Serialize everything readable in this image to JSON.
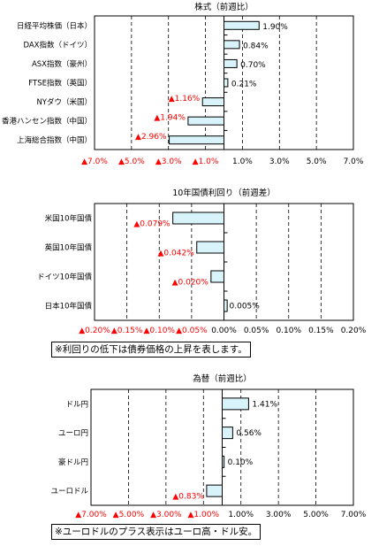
{
  "colors": {
    "bar_fill": "#d9f3fa",
    "bar_stroke": "#000000",
    "negative_label": "#ff0000",
    "positive_label": "#000000",
    "grid": "#000000"
  },
  "chart_data": [
    {
      "type": "bar",
      "orientation": "horizontal",
      "title": "株式（前週比）",
      "categories": [
        "日経平均株価（日本）",
        "DAX指数（ドイツ）",
        "ASX指数（豪州）",
        "FTSE指数（英国）",
        "NYダウ（米国）",
        "香港ハンセン指数（中国）",
        "上海総合指数（中国）"
      ],
      "values": [
        1.9,
        0.84,
        0.7,
        0.21,
        -1.16,
        -1.94,
        -2.96
      ],
      "value_labels": [
        "1.90%",
        "0.84%",
        "0.70%",
        "0.21%",
        "▲1.16%",
        "▲1.94%",
        "▲2.96%"
      ],
      "xlim": [
        -7,
        7
      ],
      "xticks": [
        -7,
        -5,
        -3,
        -1,
        1,
        3,
        5,
        7
      ],
      "xtick_labels": [
        "▲7.0%",
        "▲5.0%",
        "▲3.0%",
        "▲1.0%",
        "1.0%",
        "3.0%",
        "5.0%",
        "7.0%"
      ],
      "grid": true
    },
    {
      "type": "bar",
      "orientation": "horizontal",
      "title": "10年国債利回り（前週差）",
      "categories": [
        "米国10年国債",
        "英国10年国債",
        "ドイツ10年国債",
        "日本10年国債"
      ],
      "values": [
        -0.079,
        -0.042,
        -0.02,
        0.005
      ],
      "value_labels": [
        "▲0.079%",
        "▲0.042%",
        "▲0.020%",
        "0.005%"
      ],
      "xlim": [
        -0.2,
        0.2
      ],
      "xticks": [
        -0.2,
        -0.15,
        -0.1,
        -0.05,
        0,
        0.05,
        0.1,
        0.15,
        0.2
      ],
      "xtick_labels": [
        "▲0.20%",
        "▲0.15%",
        "▲0.10%",
        "▲0.05%",
        "0.00%",
        "0.05%",
        "0.10%",
        "0.15%",
        "0.20%"
      ],
      "grid": true,
      "note": "※利回りの低下は債券価格の上昇を表します。"
    },
    {
      "type": "bar",
      "orientation": "horizontal",
      "title": "為替（前週比）",
      "categories": [
        "ドル円",
        "ユーロ円",
        "豪ドル円",
        "ユーロドル"
      ],
      "values": [
        1.41,
        0.56,
        0.1,
        -0.83
      ],
      "value_labels": [
        "1.41%",
        "0.56%",
        "0.10%",
        "▲0.83%"
      ],
      "xlim": [
        -7,
        7
      ],
      "xticks": [
        -7,
        -5,
        -3,
        -1,
        1,
        3,
        5,
        7
      ],
      "xtick_labels": [
        "▲7.00%",
        "▲5.00%",
        "▲3.00%",
        "▲1.00%",
        "1.00%",
        "3.00%",
        "5.00%",
        "7.00%"
      ],
      "grid": true,
      "note": "※ユーロドルのプラス表示はユーロ高・ドル安。"
    }
  ]
}
